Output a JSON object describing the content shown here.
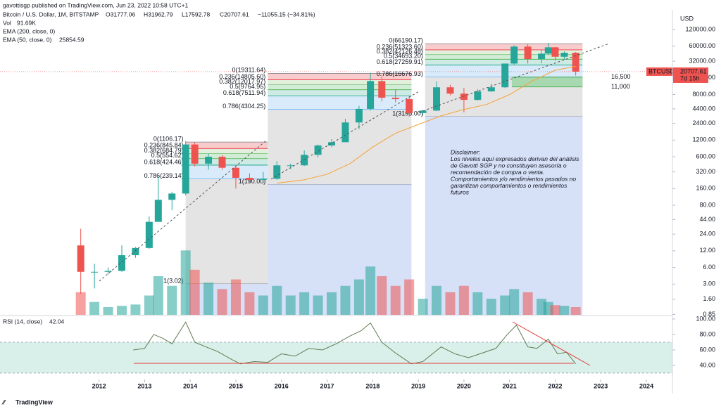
{
  "header": {
    "published": "gavottisgp published on TradingView.com, Jun 23, 2022 10:58 UTC+1",
    "footer": "TradingView"
  },
  "chart_data": {
    "type": "candlestick",
    "title": "Bitcoin / U.S. Dollar, 1M, BITSTAMP",
    "ohlc_labels": [
      "O31777.06",
      "H31962.79",
      "L17592.78",
      "C20707.61",
      "−11055.15 (−34.81%)"
    ],
    "volume_label": "Vol",
    "volume_value": "91.69K",
    "ema200_label": "EMA (200, close, 0)",
    "ema50_label": "EMA (50, close, 0)",
    "ema50_value": "25854.59",
    "currency": "USD",
    "symbol": "BTCUSD",
    "last_price": "20707.61",
    "countdown": "7d 15h",
    "log_scale": true,
    "xlim": [
      2009.83,
      2024.57
    ],
    "xticks": [
      2012,
      2013,
      2014,
      2015,
      2016,
      2017,
      2018,
      2019,
      2020,
      2021,
      2022,
      2023,
      2024
    ],
    "ylim": [
      0.835,
      227600
    ],
    "yticks": [
      {
        "value": 120000,
        "label": "120000.00"
      },
      {
        "value": 60000,
        "label": "60000.00"
      },
      {
        "value": 32000,
        "label": "32000.00"
      },
      {
        "value": 16000,
        "label": "16000.00"
      },
      {
        "value": 8000,
        "label": "8000.00"
      },
      {
        "value": 4400,
        "label": "4400.00"
      },
      {
        "value": 2400,
        "label": "2400.00"
      },
      {
        "value": 1200,
        "label": "1200.00"
      },
      {
        "value": 600,
        "label": "600.00"
      },
      {
        "value": 320,
        "label": "320.00"
      },
      {
        "value": 160,
        "label": "160.00"
      },
      {
        "value": 80,
        "label": "80.00"
      },
      {
        "value": 44,
        "label": "44.00"
      },
      {
        "value": 24,
        "label": "24.00"
      },
      {
        "value": 12,
        "label": "12.00"
      },
      {
        "value": 6,
        "label": "6.00"
      },
      {
        "value": 3,
        "label": "3.00"
      },
      {
        "value": 1.6,
        "label": "1.60"
      },
      {
        "value": 0.85,
        "label": "0.85"
      }
    ],
    "up_color": "#26a69a",
    "down_color": "#ef5350",
    "x": [
      2011.6,
      2011.9,
      2012.2,
      2012.5,
      2012.8,
      2013.1,
      2013.3,
      2013.6,
      2013.9,
      2014.1,
      2014.4,
      2014.7,
      2015.0,
      2015.3,
      2015.6,
      2015.9,
      2016.2,
      2016.5,
      2016.8,
      2017.1,
      2017.4,
      2017.7,
      2017.95,
      2018.2,
      2018.5,
      2018.8,
      2019.1,
      2019.4,
      2019.7,
      2020.0,
      2020.3,
      2020.6,
      2020.9,
      2021.1,
      2021.4,
      2021.7,
      2021.85,
      2022.0,
      2022.2,
      2022.45
    ],
    "open": [
      15,
      5,
      5,
      5.2,
      10,
      13.5,
      40,
      100,
      130,
      1000,
      450,
      600,
      380,
      250,
      230,
      240,
      420,
      420,
      650,
      960,
      1100,
      2500,
      4400,
      14000,
      7000,
      6600,
      3700,
      4100,
      10800,
      8300,
      6400,
      9100,
      10800,
      29000,
      58800,
      35000,
      43800,
      57000,
      38500,
      45500
    ],
    "high": [
      30,
      7,
      6,
      15,
      14,
      50,
      260,
      140,
      1150,
      1100,
      680,
      650,
      400,
      300,
      320,
      500,
      450,
      780,
      1000,
      1250,
      2900,
      5000,
      19800,
      17000,
      9900,
      7400,
      4200,
      13800,
      12000,
      10500,
      10000,
      12400,
      29000,
      61800,
      64800,
      52000,
      69000,
      58000,
      48000,
      47000
    ],
    "low": [
      2,
      2.5,
      4.5,
      5,
      9,
      13,
      50,
      65,
      120,
      400,
      350,
      350,
      160,
      200,
      200,
      230,
      360,
      410,
      580,
      900,
      1100,
      1900,
      4100,
      6000,
      5800,
      3200,
      3350,
      4000,
      7700,
      3800,
      6200,
      9000,
      10500,
      28000,
      29000,
      29300,
      42000,
      33000,
      34000,
      17592
    ],
    "close": [
      5,
      5,
      5.2,
      10,
      13.5,
      40,
      100,
      130,
      1000,
      450,
      600,
      380,
      250,
      230,
      240,
      420,
      420,
      650,
      960,
      1100,
      2500,
      4400,
      14000,
      7000,
      6600,
      3700,
      4100,
      10800,
      8300,
      6400,
      9100,
      10800,
      29000,
      58800,
      35000,
      43800,
      57000,
      38500,
      45500,
      20707
    ],
    "volume_lim": [
      0,
      120
    ],
    "volume": [
      35,
      20,
      12,
      14,
      16,
      30,
      60,
      45,
      100,
      70,
      50,
      40,
      55,
      35,
      30,
      45,
      30,
      35,
      30,
      35,
      45,
      55,
      75,
      60,
      45,
      55,
      25,
      45,
      35,
      45,
      35,
      25,
      30,
      40,
      35,
      25,
      20,
      15,
      14,
      12
    ],
    "series": [
      {
        "name": "EMA (50, close, 0)",
        "color": "#f7a234",
        "x": [
          2015.9,
          2016.5,
          2017.0,
          2017.5,
          2018.0,
          2018.5,
          2019.0,
          2019.5,
          2020.0,
          2020.5,
          2021.0,
          2021.5,
          2022.0,
          2022.45
        ],
        "values": [
          200,
          230,
          290,
          450,
          900,
          1600,
          2300,
          3300,
          4300,
          5300,
          8000,
          14000,
          22000,
          25854.59
        ]
      }
    ],
    "fib_sets": [
      {
        "x0": 2013.9,
        "x1": 2015.7,
        "levels": [
          {
            "label": "0(1106.17)",
            "price": 1106.17
          },
          {
            "label": "0.236(845.84)",
            "price": 845.84
          },
          {
            "label": "0.382(684.79)",
            "price": 684.79
          },
          {
            "label": "0.5(554.62)",
            "price": 554.62
          },
          {
            "label": "0.618(424.46)",
            "price": 424.46
          },
          {
            "label": "0.786(239.14)",
            "price": 239.14
          },
          {
            "label": "1(3.02)",
            "price": 3.02
          }
        ]
      },
      {
        "x0": 2015.7,
        "x1": 2018.85,
        "levels": [
          {
            "label": "0(19311.64)",
            "price": 19311.64
          },
          {
            "label": "0.236(14805.60)",
            "price": 14805.6
          },
          {
            "label": "0.382(12017.97)",
            "price": 12017.97
          },
          {
            "label": "0.5(9764.95)",
            "price": 9764.95
          },
          {
            "label": "0.618(7511.94)",
            "price": 7511.94
          },
          {
            "label": "0.786(4304.25)",
            "price": 4304.25
          },
          {
            "label": "1(190.00)",
            "price": 190
          }
        ]
      },
      {
        "x0": 2019.15,
        "x1": 2022.6,
        "levels": [
          {
            "label": "0(66190.17)",
            "price": 66190.17
          },
          {
            "label": "0.236(51323.60)",
            "price": 51323.6
          },
          {
            "label": "0.382(42126.48)",
            "price": 42126.48
          },
          {
            "label": "0.5(34693.20)",
            "price": 34693.2
          },
          {
            "label": "0.618(27259.91)",
            "price": 27259.91
          },
          {
            "label": "0.786(16676.93)",
            "price": 16676.93
          },
          {
            "label": "1(3195.00)",
            "price": 3195
          }
        ]
      }
    ],
    "supports": [
      {
        "label": "16,500",
        "value": 16500
      },
      {
        "label": "11,000",
        "value": 11000
      }
    ],
    "rsi": {
      "label": "RSI (14, close)",
      "value_label": "42.04",
      "color": "#5d7a52",
      "ylim": [
        21.8,
        104.5
      ],
      "yticks": [
        {
          "value": 100,
          "label": "100.00"
        },
        {
          "value": 80,
          "label": "80.00"
        },
        {
          "value": 60,
          "label": "60.00"
        },
        {
          "value": 40,
          "label": "40.00"
        }
      ],
      "band": [
        30,
        70
      ],
      "x": [
        2012.75,
        2013.0,
        2013.2,
        2013.4,
        2013.6,
        2013.9,
        2014.1,
        2014.3,
        2014.6,
        2014.9,
        2015.1,
        2015.4,
        2015.7,
        2016.0,
        2016.3,
        2016.6,
        2016.9,
        2017.2,
        2017.5,
        2017.75,
        2017.95,
        2018.2,
        2018.5,
        2018.85,
        2019.1,
        2019.5,
        2019.8,
        2020.1,
        2020.4,
        2020.7,
        2020.95,
        2021.15,
        2021.4,
        2021.6,
        2021.85,
        2022.05,
        2022.25,
        2022.45
      ],
      "values": [
        60,
        62,
        80,
        75,
        68,
        96,
        70,
        65,
        58,
        48,
        42,
        45,
        44,
        55,
        52,
        62,
        60,
        68,
        78,
        85,
        95,
        70,
        56,
        42,
        45,
        64,
        55,
        50,
        56,
        62,
        80,
        92,
        64,
        62,
        74,
        55,
        57,
        42.04
      ]
    },
    "disclaimer": [
      "Disclaimer:",
      "Los niveles aquí expresados derivan del análisis",
      "de Gavotti SGP y no constituyen asesoría o",
      "recomendación de compra o venta.",
      "Comportamientos y/o rendimientos pasados no",
      "garantizan comportamientos o rendimientos",
      "futuros"
    ]
  }
}
